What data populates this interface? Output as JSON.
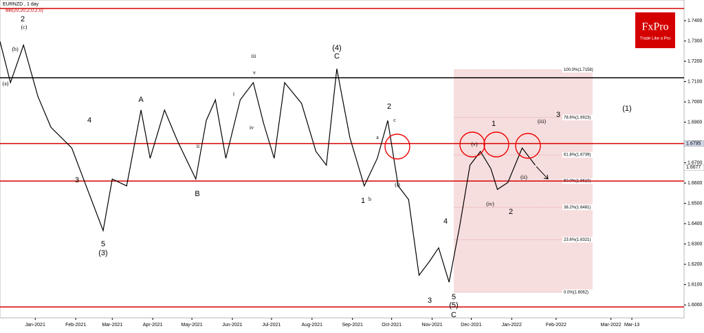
{
  "chart_data": {
    "type": "line",
    "title": "EURNZD , 1 day",
    "subtitle": "BB(20,20,2,0,2,0)",
    "logo": {
      "name": "FxPro",
      "tagline": "Trade Like a Pro"
    },
    "x": [
      -27,
      -19,
      -9,
      2,
      12,
      28,
      36,
      52,
      59,
      70,
      81,
      88,
      99,
      109,
      123,
      131,
      138,
      146,
      157,
      167,
      175,
      183,
      191,
      204,
      215,
      223,
      231,
      241,
      252,
      262,
      270,
      278,
      286,
      294,
      302,
      309,
      317,
      325,
      333,
      341,
      349,
      354,
      362,
      373,
      383
    ],
    "series": [
      {
        "color": "#000000",
        "values": [
          1.7298,
          1.7095,
          1.728,
          1.7027,
          1.6875,
          1.6773,
          1.6637,
          1.6366,
          1.662,
          1.6586,
          1.696,
          1.6722,
          1.696,
          1.6807,
          1.662,
          1.6908,
          1.701,
          1.6722,
          1.701,
          1.7095,
          1.6892,
          1.6722,
          1.7095,
          1.6993,
          1.6756,
          1.6688,
          1.7163,
          1.6824,
          1.6586,
          1.6722,
          1.6908,
          1.6586,
          1.6519,
          1.6146,
          1.6214,
          1.6281,
          1.6112,
          1.6383,
          1.6688,
          1.6756,
          1.6671,
          1.6569,
          1.6603,
          1.6773,
          1.6688
        ]
      }
    ],
    "xlim": [
      -27,
      497
    ],
    "xticks": [
      {
        "value": 0,
        "label": "Jan-2021"
      },
      {
        "value": 31,
        "label": "Feb-2021"
      },
      {
        "value": 59,
        "label": "Mar-2021"
      },
      {
        "value": 90,
        "label": "Apr-2021"
      },
      {
        "value": 120,
        "label": "May-2021"
      },
      {
        "value": 151,
        "label": "Jun-2021"
      },
      {
        "value": 181,
        "label": "Jul-2021"
      },
      {
        "value": 212,
        "label": "Aug-2021"
      },
      {
        "value": 243,
        "label": "Sep-2021"
      },
      {
        "value": 273,
        "label": "Oct-2021"
      },
      {
        "value": 304,
        "label": "Nov-2021"
      },
      {
        "value": 334,
        "label": "Dec-2021"
      },
      {
        "value": 365,
        "label": "Jan-2022"
      },
      {
        "value": 399,
        "label": "Feb-2022"
      },
      {
        "value": 441,
        "label": "Mar-2022"
      },
      {
        "value": 457,
        "label": "Mar-13"
      }
    ],
    "ylim": [
      1.5936,
      1.7502
    ],
    "yticks": [
      {
        "value": 1.6,
        "label": "1.6000"
      },
      {
        "value": 1.61,
        "label": "1.6100"
      },
      {
        "value": 1.62,
        "label": "1.6200"
      },
      {
        "value": 1.63,
        "label": "1.6300"
      },
      {
        "value": 1.64,
        "label": "1.6400"
      },
      {
        "value": 1.65,
        "label": "1.6500"
      },
      {
        "value": 1.66,
        "label": "1.6600"
      },
      {
        "value": 1.67,
        "label": "1.6700"
      },
      {
        "value": 1.68,
        "label": "1.6800"
      },
      {
        "value": 1.69,
        "label": "1.6900"
      },
      {
        "value": 1.7,
        "label": "1.7000"
      },
      {
        "value": 1.71,
        "label": "1.7100"
      },
      {
        "value": 1.72,
        "label": "1.7200"
      },
      {
        "value": 1.73,
        "label": "1.7300"
      },
      {
        "value": 1.74,
        "label": "1.7400"
      }
    ],
    "levels": [
      {
        "value": 1.746,
        "color": "#d40000"
      },
      {
        "value": 1.7119,
        "color": "#000000"
      },
      {
        "value": 1.6795,
        "color": "#d40000"
      },
      {
        "value": 1.661,
        "color": "#d40000"
      },
      {
        "value": 1.599,
        "color": "#d40000"
      }
    ],
    "price_tags": [
      1.6795,
      1.6677
    ],
    "fib_levels": [
      {
        "value": 1.7158,
        "label": "100.0%(1.7158)"
      },
      {
        "value": 1.6923,
        "label": "78.6%(1.6923)"
      },
      {
        "value": 1.6739,
        "label": "61.8%(1.6739)"
      },
      {
        "value": 1.661,
        "label": "50.0%(1.6610)"
      },
      {
        "value": 1.6481,
        "label": "38.2%(1.6481)"
      },
      {
        "value": 1.6321,
        "label": "23.6%(1.6321)"
      },
      {
        "value": 1.6062,
        "label": "0.0%(1.6062)"
      }
    ],
    "annotations": [
      "2",
      "4",
      "3",
      "5",
      "(3)",
      "A",
      "B",
      "(4)",
      "C",
      "2",
      "1",
      "4",
      "3",
      "5",
      "(5)",
      "C",
      "1",
      "2",
      "3",
      "(1)",
      "(a)",
      "(b)",
      "(c)",
      "iii",
      "iv",
      "v",
      "i",
      "ii",
      "(i)",
      "(ii)",
      "(iii)",
      "(iv)",
      "(v)",
      "a",
      "b",
      "c"
    ]
  }
}
